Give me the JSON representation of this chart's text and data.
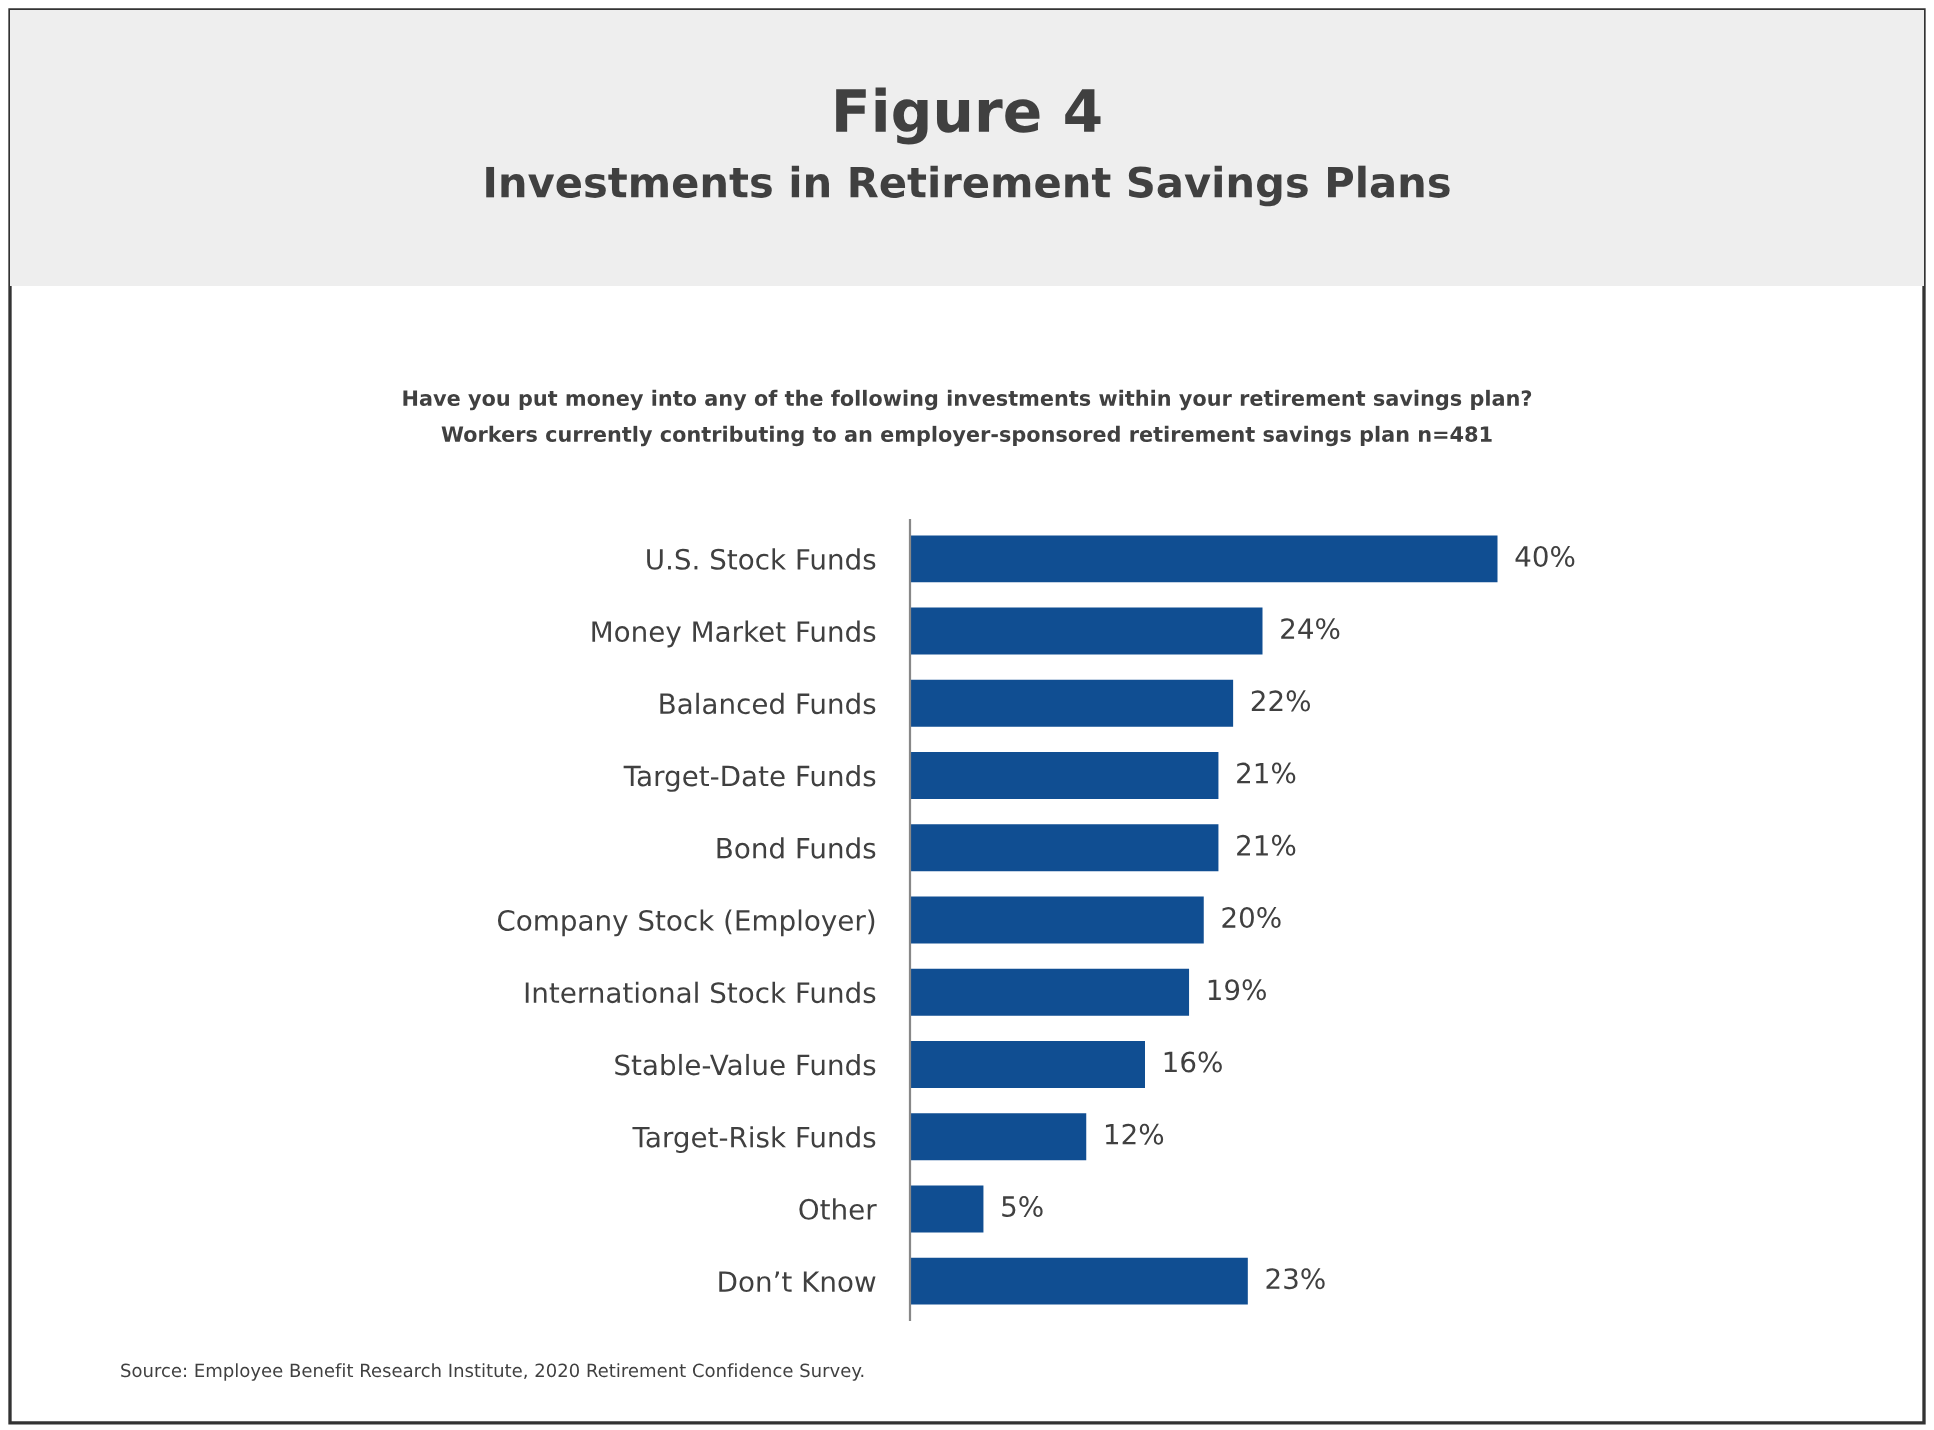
{
  "chart_data": {
    "type": "bar",
    "orientation": "horizontal",
    "title": "Figure 4",
    "subtitle": "Investments in Retirement Savings Plans",
    "annotations": [
      "Have you put money into any of the following investments within your retirement savings plan?",
      "Workers currently contributing to an employer-sponsored retirement savings plan n=481",
      "Source: Employee Benefit Research Institute, 2020 Retirement Confidence Survey."
    ],
    "categories": [
      "U.S. Stock Funds",
      "Money Market Funds",
      "Balanced Funds",
      "Target-Date Funds",
      "Bond Funds",
      "Company Stock (Employer)",
      "International Stock Funds",
      "Stable-Value Funds",
      "Target-Risk Funds",
      "Other",
      "Don’t Know"
    ],
    "values": [
      40,
      24,
      22,
      21,
      21,
      20,
      19,
      16,
      12,
      5,
      23
    ],
    "value_labels": [
      "40%",
      "24%",
      "22%",
      "21%",
      "21%",
      "20%",
      "19%",
      "16%",
      "12%",
      "5%",
      "23%"
    ],
    "color": "#104e92",
    "grid": false,
    "legend": false,
    "tick_labels": "y"
  }
}
